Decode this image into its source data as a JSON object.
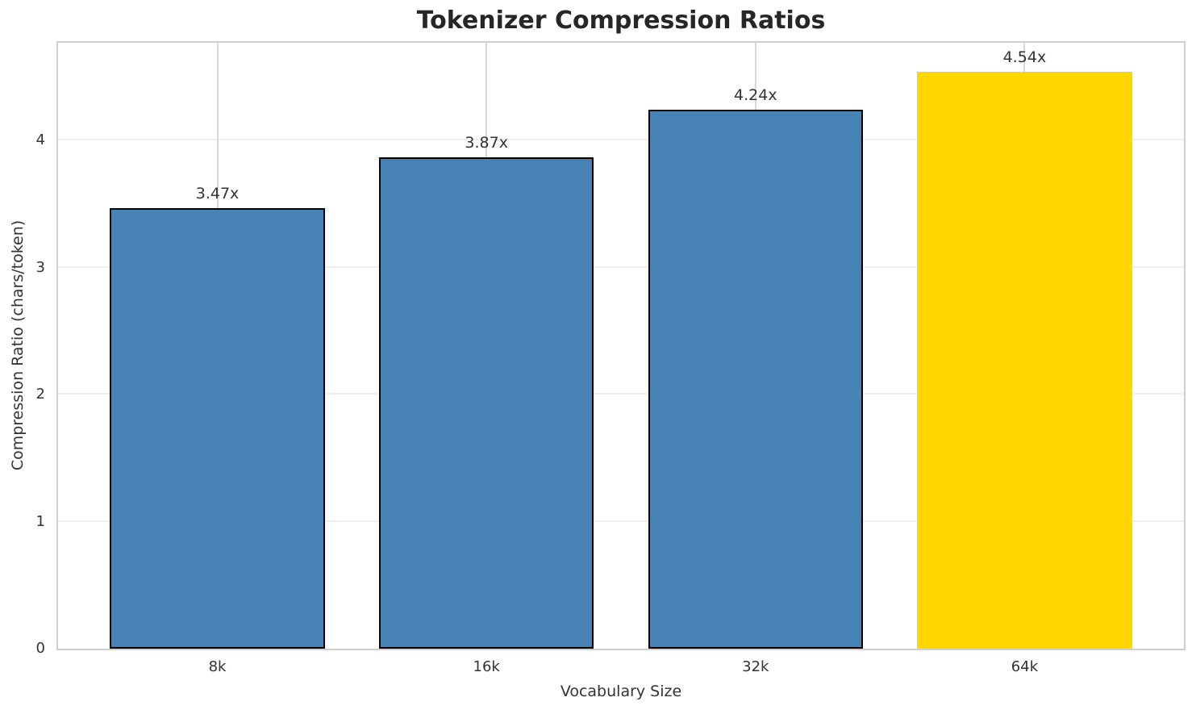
{
  "chart_data": {
    "type": "bar",
    "title": "Tokenizer Compression Ratios",
    "xlabel": "Vocabulary Size",
    "ylabel": "Compression Ratio (chars/token)",
    "categories": [
      "8k",
      "16k",
      "32k",
      "64k"
    ],
    "values": [
      3.47,
      3.87,
      4.24,
      4.54
    ],
    "value_labels": [
      "3.47x",
      "3.87x",
      "4.24x",
      "4.54x"
    ],
    "bar_colors": [
      "#4682B4",
      "#4682B4",
      "#4682B4",
      "#FFD700"
    ],
    "bar_edge_colors": [
      "#000000",
      "#000000",
      "#000000",
      "none"
    ],
    "highlight_index": 3,
    "yticks": [
      0,
      1,
      2,
      3,
      4
    ],
    "ylim": [
      0,
      4.77
    ],
    "grid": {
      "vertical": true,
      "horizontal": true,
      "vertical_color": "#d9d9d9",
      "horizontal_color": "#efefef"
    },
    "legend": "none",
    "accent_color": "#4682B4",
    "highlight_color": "#FFD700",
    "spine_color": "#cfcfcf",
    "text_color": "#333333",
    "title_color": "#262626"
  }
}
